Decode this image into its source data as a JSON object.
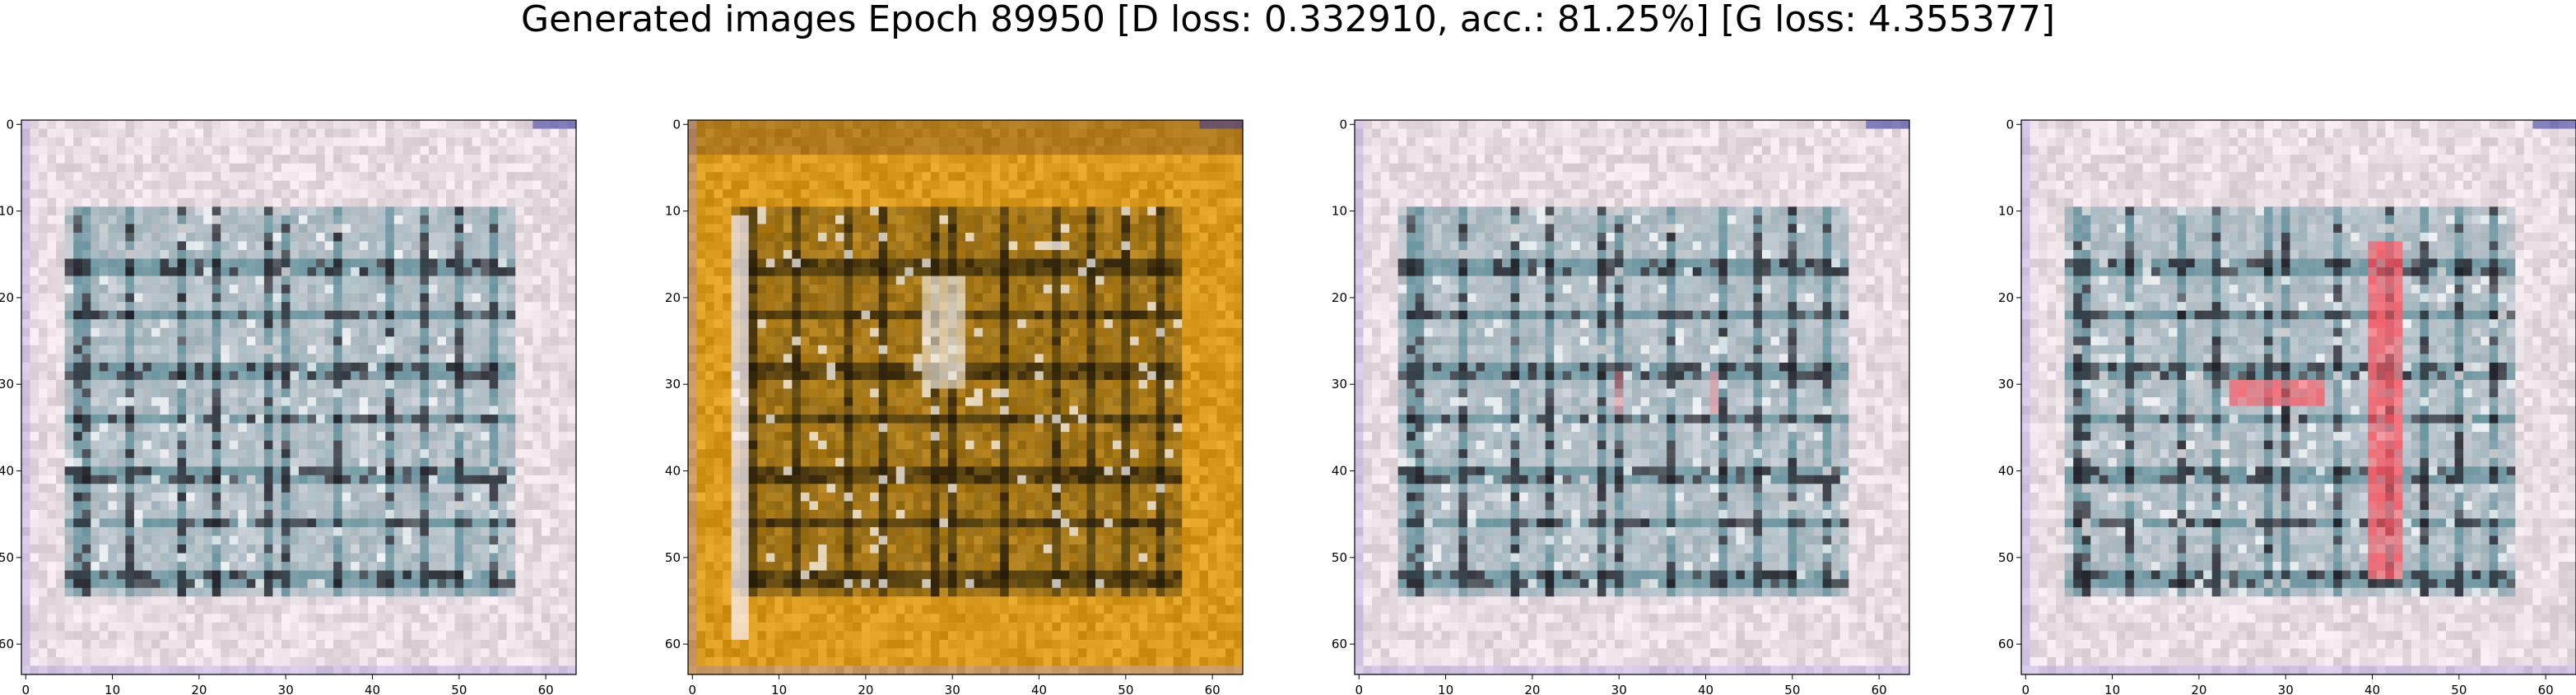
{
  "title": "Generated images Epoch 89950 [D loss: 0.332910, acc.: 81.25%] [G loss: 4.355377]",
  "chart_data": [
    {
      "type": "heatmap",
      "description_shown": "generated 64x64 RGB image",
      "xlim": [
        0,
        63
      ],
      "ylim": [
        63,
        0
      ],
      "xticks": [
        0,
        10,
        20,
        30,
        40,
        50,
        60
      ],
      "yticks": [
        0,
        10,
        20,
        30,
        40,
        50,
        60
      ],
      "palette": {
        "base": "#e7dde2",
        "grid": "#5f8f9a",
        "dark": "#1c1c24",
        "accent": "#f07a86"
      },
      "style": "pale"
    },
    {
      "type": "heatmap",
      "description_shown": "generated 64x64 RGB image",
      "xlim": [
        0,
        63
      ],
      "ylim": [
        63,
        0
      ],
      "xticks": [
        0,
        10,
        20,
        30,
        40,
        50,
        60
      ],
      "yticks": [
        0,
        10,
        20,
        30,
        40,
        50,
        60
      ],
      "palette": {
        "base": "#d99a1e",
        "grid": "#4a3a10",
        "dark": "#201808",
        "accent": "#f3ece0"
      },
      "style": "golden"
    },
    {
      "type": "heatmap",
      "description_shown": "generated 64x64 RGB image",
      "xlim": [
        0,
        63
      ],
      "ylim": [
        63,
        0
      ],
      "xticks": [
        0,
        10,
        20,
        30,
        40,
        50,
        60
      ],
      "yticks": [
        0,
        10,
        20,
        30,
        40,
        50,
        60
      ],
      "palette": {
        "base": "#e7dde2",
        "grid": "#5f8f9a",
        "dark": "#1c1c24",
        "accent": "#f28a94"
      },
      "style": "pale"
    },
    {
      "type": "heatmap",
      "description_shown": "generated 64x64 RGB image",
      "xlim": [
        0,
        63
      ],
      "ylim": [
        63,
        0
      ],
      "xticks": [
        0,
        10,
        20,
        30,
        40,
        50,
        60
      ],
      "yticks": [
        0,
        10,
        20,
        30,
        40,
        50,
        60
      ],
      "palette": {
        "base": "#e7dde2",
        "grid": "#5f8f9a",
        "dark": "#1c1c24",
        "accent": "#ff5560"
      },
      "style": "pale-red"
    }
  ]
}
